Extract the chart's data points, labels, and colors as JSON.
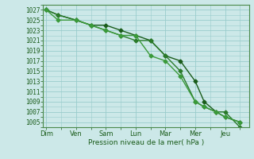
{
  "background_color": "#cce8e8",
  "grid_color": "#99cccc",
  "xlabel": "Pression niveau de la mer( hPa )",
  "ylim": [
    1004,
    1028
  ],
  "ytick_min": 1005,
  "ytick_max": 1027,
  "ytick_step": 2,
  "x_labels": [
    "Dim",
    "Ven",
    "Sam",
    "Lun",
    "Mar",
    "Mer",
    "Jeu"
  ],
  "x_positions": [
    0,
    1,
    2,
    3,
    4,
    5,
    6
  ],
  "xlim": [
    -0.1,
    6.8
  ],
  "series": [
    {
      "x": [
        0.0,
        0.4,
        1.0,
        1.5,
        2.0,
        2.5,
        3.0,
        3.5,
        4.0,
        4.5,
        5.0,
        5.3,
        5.7,
        6.0,
        6.5
      ],
      "y": [
        1027,
        1026,
        1025,
        1024,
        1024,
        1023,
        1022,
        1021,
        1018,
        1017,
        1013,
        1009,
        1007,
        1006,
        1005
      ],
      "marker": "D",
      "markersize": 2.5,
      "linewidth": 1.0,
      "color": "#1a5c1a"
    },
    {
      "x": [
        0.0,
        0.4,
        1.0,
        1.5,
        2.0,
        2.5,
        3.0,
        3.5,
        4.0,
        4.5,
        5.0,
        5.3,
        5.7,
        6.0,
        6.5
      ],
      "y": [
        1027,
        1026,
        1025,
        1024,
        1023,
        1022,
        1021,
        1021,
        1018,
        1015,
        1009,
        1008,
        1007,
        1007,
        1004
      ],
      "marker": "D",
      "markersize": 2.5,
      "linewidth": 1.0,
      "color": "#2a7a2a"
    },
    {
      "x": [
        0.0,
        0.4,
        1.0,
        1.5,
        2.0,
        2.5,
        3.0,
        3.5,
        4.0,
        4.5,
        5.0,
        5.3,
        5.7,
        6.0,
        6.5
      ],
      "y": [
        1027,
        1025,
        1025,
        1024,
        1023,
        1022,
        1022,
        1018,
        1017,
        1014,
        1009,
        1008,
        1007,
        1006,
        1005
      ],
      "marker": "D",
      "markersize": 2.5,
      "linewidth": 1.0,
      "color": "#3a9a3a"
    }
  ],
  "ytick_fontsize": 5.5,
  "xtick_fontsize": 6.0,
  "xlabel_fontsize": 6.5,
  "tick_color": "#1a5c1a",
  "spine_color": "#4a8a4a"
}
